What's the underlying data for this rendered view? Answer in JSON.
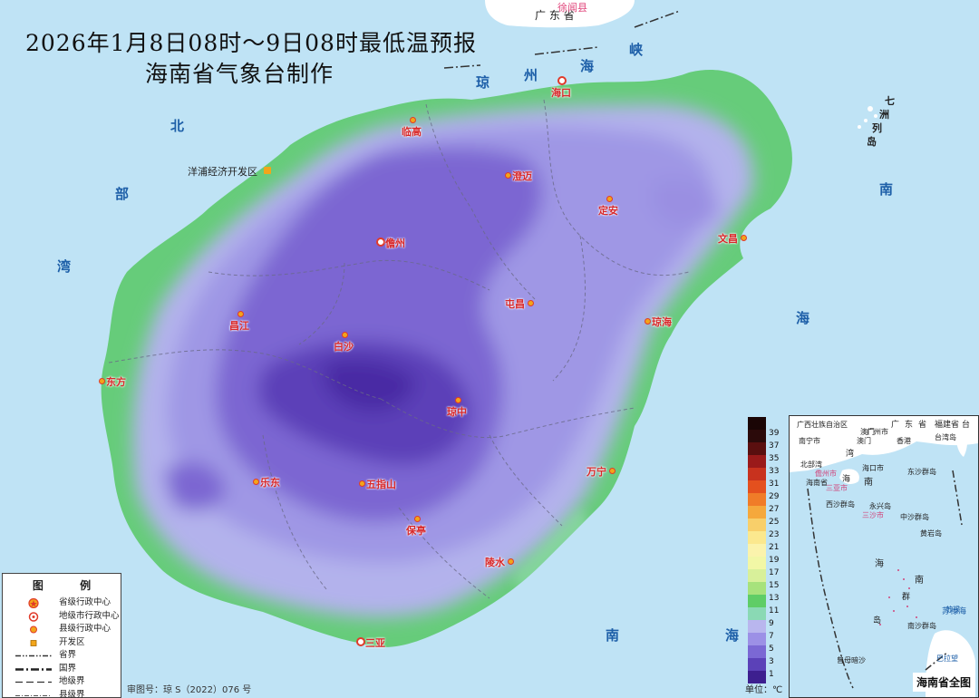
{
  "title": {
    "line1": "2026年1月8日08时～9日08时最低温预报",
    "line2": "海南省气象台制作"
  },
  "sea_labels": {
    "qiongzhou_strait": [
      "琼",
      "州",
      "海",
      "峡"
    ],
    "beibu_gulf": [
      "北",
      "部",
      "湾"
    ],
    "south_china_sea_east": [
      "南",
      "海"
    ],
    "south_china_sea_south": [
      "南",
      "海"
    ],
    "qizhou": [
      "七",
      "洲",
      "列",
      "岛"
    ]
  },
  "mainland": {
    "guangdong": "广 东 省",
    "xuwen": "徐闻县"
  },
  "cities": [
    {
      "name": "海口",
      "type": "prefecture"
    },
    {
      "name": "临高",
      "type": "county"
    },
    {
      "name": "澄迈",
      "type": "county"
    },
    {
      "name": "定安",
      "type": "county"
    },
    {
      "name": "文昌",
      "type": "county"
    },
    {
      "name": "儋州",
      "type": "prefecture"
    },
    {
      "name": "屯昌",
      "type": "county"
    },
    {
      "name": "琼海",
      "type": "county"
    },
    {
      "name": "昌江",
      "type": "county"
    },
    {
      "name": "白沙",
      "type": "county"
    },
    {
      "name": "东方",
      "type": "county"
    },
    {
      "name": "琼中",
      "type": "county"
    },
    {
      "name": "乐东",
      "type": "county"
    },
    {
      "name": "五指山",
      "type": "county"
    },
    {
      "name": "万宁",
      "type": "county"
    },
    {
      "name": "保亭",
      "type": "county"
    },
    {
      "name": "陵水",
      "type": "county"
    },
    {
      "name": "三亚",
      "type": "prefecture"
    },
    {
      "name": "洋浦经济开发区",
      "type": "devzone"
    }
  ],
  "legend": {
    "title": "图  例",
    "items": [
      {
        "label": "省级行政中心",
        "symbol": "provincial-center"
      },
      {
        "label": "地级市行政中心",
        "symbol": "prefecture-center"
      },
      {
        "label": "县级行政中心",
        "symbol": "county-center"
      },
      {
        "label": "开发区",
        "symbol": "devzone"
      },
      {
        "label": "省界",
        "symbol": "province-boundary"
      },
      {
        "label": "国界",
        "symbol": "national-boundary"
      },
      {
        "label": "地级界",
        "symbol": "prefecture-boundary"
      },
      {
        "label": "县级界",
        "symbol": "county-boundary"
      }
    ]
  },
  "approval": "审图号：琼 S（2022）076 号",
  "colorbar": {
    "unit": "单位：℃",
    "labels": [
      "39",
      "37",
      "35",
      "33",
      "31",
      "29",
      "27",
      "25",
      "23",
      "21",
      "19",
      "17",
      "15",
      "13",
      "11",
      "9",
      "7",
      "5",
      "3",
      "1"
    ],
    "colors": [
      "#2b0a0a",
      "#5a0f0f",
      "#9a1a1a",
      "#c8321e",
      "#e4501e",
      "#f07c28",
      "#f5a83c",
      "#f8cf6a",
      "#fbe88e",
      "#fbf3ac",
      "#f2f7a6",
      "#d8f09a",
      "#a7e27c",
      "#5fcd66",
      "#8ad9b4",
      "#b9b6ee",
      "#9c90e6",
      "#7b68d4",
      "#5b41b8",
      "#3d1f8f"
    ]
  },
  "inset": {
    "title": "海南省全图",
    "labels": [
      "广西壮族自治区",
      "广",
      "东",
      "省",
      "福建省",
      "台",
      "南宁市",
      "广州市",
      "香港",
      "台湾岛",
      "澳门",
      "湾",
      "海口市",
      "澳门",
      "北部湾",
      "儋州市",
      "海",
      "东沙群岛",
      "海南省",
      "南",
      "三亚市",
      "西沙群岛",
      "三沙市",
      "中沙群岛",
      "永兴岛",
      "黄岩岛",
      "海",
      "南",
      "苏禄海",
      "群",
      "岛",
      "南沙群岛",
      "曾母暗沙",
      "巴拉望",
      "苏禄"
    ]
  },
  "chart_data": {
    "type": "heatmap",
    "title": "2026年1月8日08时～9日08时最低温预报",
    "variable": "最低温",
    "unit": "℃",
    "colorbar_range": [
      1,
      39
    ],
    "colorbar_step": 2,
    "region_values_estimate": {
      "central_mountains_min": 5,
      "interior_typical": 8,
      "coastal_typical": 13,
      "southern_coast_max": 17
    }
  }
}
